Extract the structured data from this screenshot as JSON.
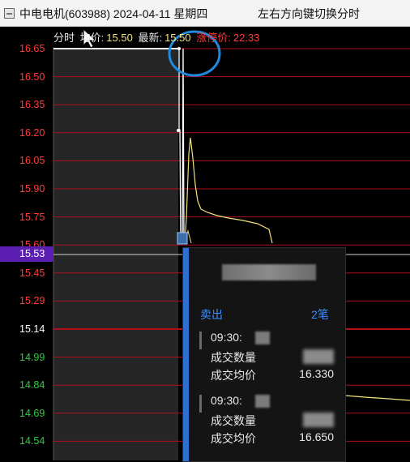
{
  "window": {
    "stock_title": "中电电机(603988) 2024-04-11 星期四",
    "hint": "左右方向键切换分时"
  },
  "info": {
    "mode": "分时",
    "avg_label": "均价:",
    "avg_value": "15.50",
    "latest_label": "最新:",
    "latest_value": "15.50",
    "limit_label": "涨停价:",
    "limit_value": "22.33"
  },
  "axis": {
    "ticks": [
      {
        "label": "16.65",
        "color": "#ff3b3b"
      },
      {
        "label": "16.50",
        "color": "#ff3b3b"
      },
      {
        "label": "16.35",
        "color": "#ff3b3b"
      },
      {
        "label": "16.20",
        "color": "#ff3b3b"
      },
      {
        "label": "16.05",
        "color": "#ff3b3b"
      },
      {
        "label": "15.90",
        "color": "#ff3b3b"
      },
      {
        "label": "15.75",
        "color": "#ff3b3b"
      },
      {
        "label": "15.60",
        "color": "#ff3b3b"
      },
      {
        "label": "15.45",
        "color": "#ff3b3b"
      },
      {
        "label": "15.29",
        "color": "#ff3b3b"
      },
      {
        "label": "15.14",
        "color": "#ffffff"
      },
      {
        "label": "14.99",
        "color": "#2ecc40"
      },
      {
        "label": "14.84",
        "color": "#2ecc40"
      },
      {
        "label": "14.69",
        "color": "#2ecc40"
      },
      {
        "label": "14.54",
        "color": "#2ecc40"
      }
    ],
    "current_price": "15.53"
  },
  "popup": {
    "side": "卖出",
    "count": "2笔",
    "trades": [
      {
        "time": "09:30:",
        "qty_label": "成交数量",
        "price_label": "成交均价",
        "price": "16.330"
      },
      {
        "time": "09:30:",
        "qty_label": "成交数量",
        "price_label": "成交均价",
        "price": "16.650"
      }
    ]
  },
  "colors": {
    "up": "#ff3b3b",
    "down": "#2ecc40",
    "grid": "#b0101a",
    "price_line": "#ffffff",
    "avg_line": "#f4e27a",
    "accent": "#2f6fd0",
    "highlight_circle": "#1e8be0"
  }
}
